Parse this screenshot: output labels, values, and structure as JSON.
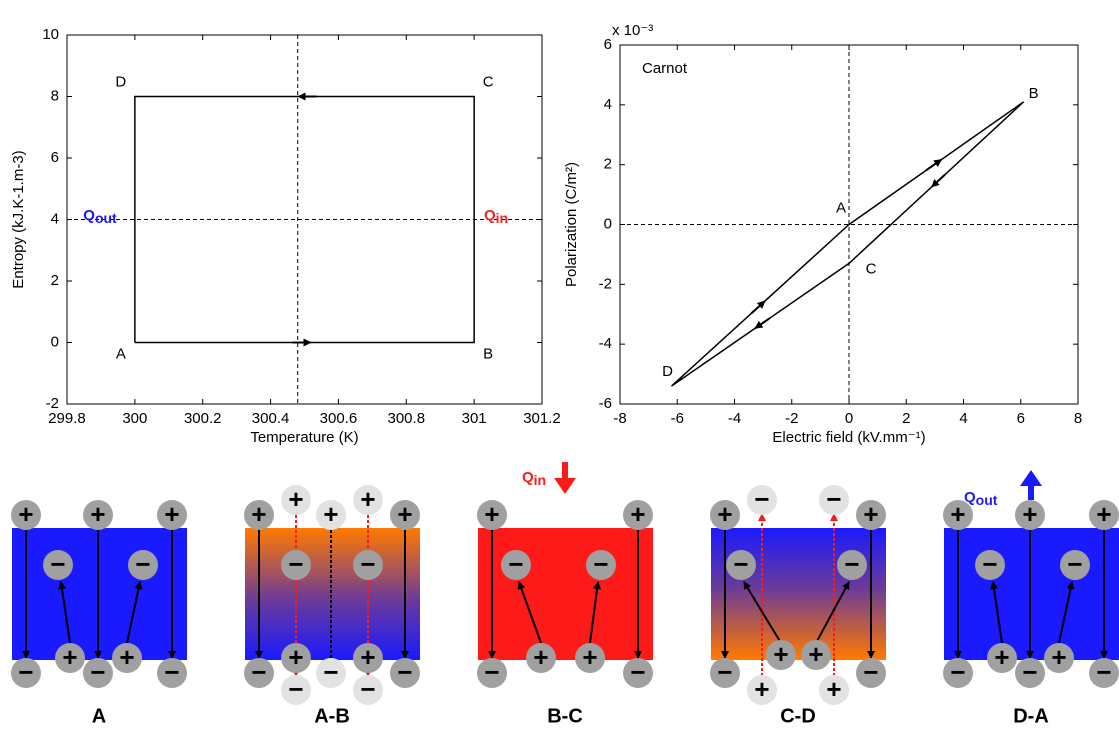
{
  "chart_data": [
    {
      "type": "line",
      "x": [
        300,
        301,
        301,
        300,
        300
      ],
      "values": [
        0,
        0,
        8,
        8,
        0
      ],
      "color": "#000000",
      "point_labels": [
        "A",
        "B",
        "C",
        "D",
        null
      ],
      "xlabel": "Temperature (K)",
      "ylabel": "Entropy (kJ.K-1.m-3)",
      "xlim": [
        299.8,
        301.2
      ],
      "xticks": [
        299.8,
        300,
        300.2,
        300.4,
        300.6,
        300.8,
        301,
        301.2
      ],
      "ylim": [
        -2,
        10
      ],
      "yticks": [
        -2,
        0,
        2,
        4,
        6,
        8,
        10
      ],
      "ref_lines": {
        "x": [
          300.48
        ],
        "y": [
          4
        ]
      },
      "annotations": [
        {
          "main": "Q",
          "sub": "out",
          "color": "#1a1aff"
        },
        {
          "main": "Q",
          "sub": "in",
          "color": "#ff2020"
        }
      ]
    },
    {
      "type": "line",
      "title": "Carnot",
      "x": [
        0,
        6.1,
        0,
        -6.2,
        0
      ],
      "values": [
        0,
        4.1,
        -1.3,
        -5.4,
        0
      ],
      "color": "#000000",
      "point_labels": [
        "A",
        "B",
        "C",
        "D",
        null
      ],
      "xlabel": "Electric field (kV.mm⁻¹)",
      "ylabel": "Polarization (C/m²)",
      "y_exponent": "x 10⁻³",
      "xlim": [
        -8,
        8
      ],
      "xticks": [
        -8,
        -6,
        -4,
        -2,
        0,
        2,
        4,
        6,
        8
      ],
      "ylim": [
        -6,
        6
      ],
      "yticks": [
        -6,
        -4,
        -2,
        0,
        2,
        4,
        6
      ],
      "ref_lines": {
        "x": [
          0
        ],
        "y": [
          0
        ]
      }
    }
  ],
  "diagram": {
    "panels": [
      "A",
      "A-B",
      "B-C",
      "C-D",
      "D-A"
    ],
    "plus": "+",
    "minus": "−",
    "q_in": {
      "main": "Q",
      "sub": "in"
    },
    "q_out": {
      "main": "Q",
      "sub": "out"
    }
  }
}
